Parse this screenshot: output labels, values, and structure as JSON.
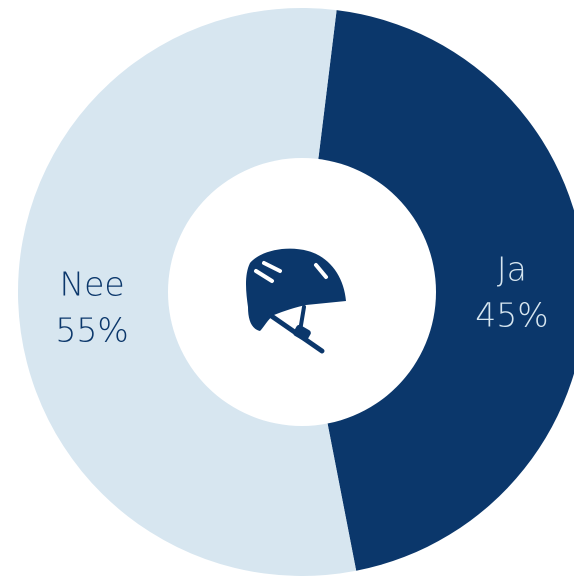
{
  "chart_data": {
    "type": "pie",
    "donut": true,
    "categories": [
      "Ja",
      "Nee"
    ],
    "values": [
      45,
      55
    ],
    "value_labels": [
      "45%",
      "55%"
    ],
    "colors": [
      "#0b376b",
      "#d7e6f0"
    ],
    "label_colors": [
      "#d7e6f0",
      "#0b376b"
    ],
    "start_angle_deg": 7,
    "title": "",
    "center_icon": "bike-helmet-icon"
  }
}
